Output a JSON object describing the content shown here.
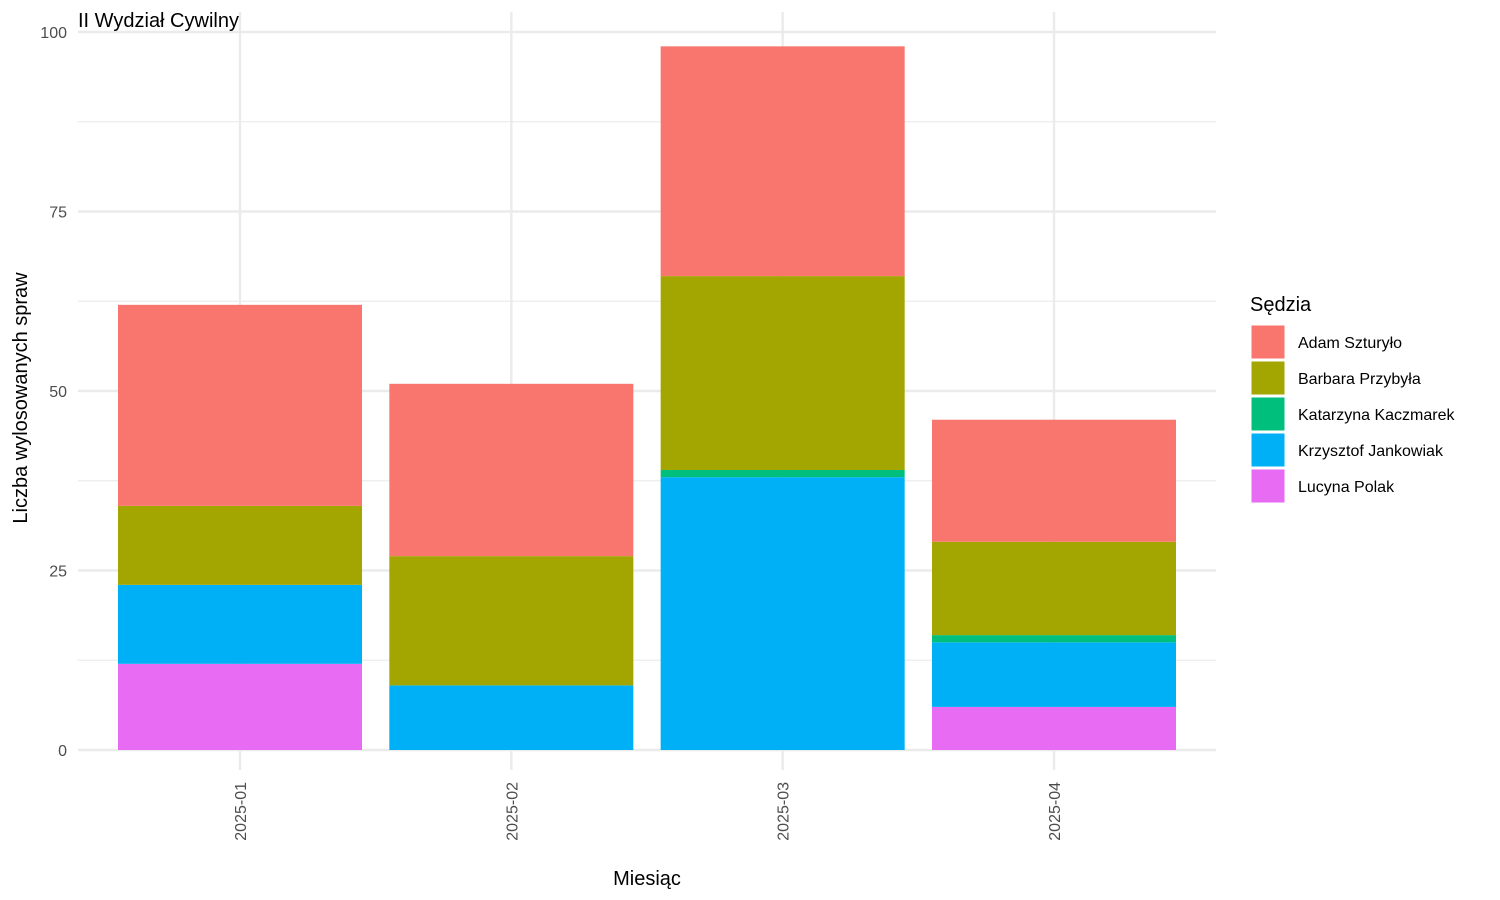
{
  "chart_data": {
    "type": "bar",
    "stacked": true,
    "title": "II Wydział Cywilny",
    "xlabel": "Miesiąc",
    "ylabel": "Liczba wylosowanych spraw",
    "categories": [
      "2025-01",
      "2025-02",
      "2025-03",
      "2025-04"
    ],
    "ylim": [
      0,
      100
    ],
    "yticks": [
      0,
      25,
      50,
      75,
      100
    ],
    "grid": true,
    "legend_position": "right",
    "legend_title": "Sędzia",
    "series": [
      {
        "name": "Adam Szturyło",
        "color": "#F8766D",
        "values": [
          28,
          24,
          32,
          17
        ]
      },
      {
        "name": "Barbara Przybyła",
        "color": "#A3A500",
        "values": [
          11,
          18,
          27,
          13
        ]
      },
      {
        "name": "Katarzyna Kaczmarek",
        "color": "#00BF7D",
        "values": [
          0,
          0,
          1,
          1
        ]
      },
      {
        "name": "Krzysztof Jankowiak",
        "color": "#00B0F6",
        "values": [
          11,
          9,
          38,
          9
        ]
      },
      {
        "name": "Lucyna Polak",
        "color": "#E76BF3",
        "values": [
          12,
          0,
          0,
          6
        ]
      }
    ]
  }
}
